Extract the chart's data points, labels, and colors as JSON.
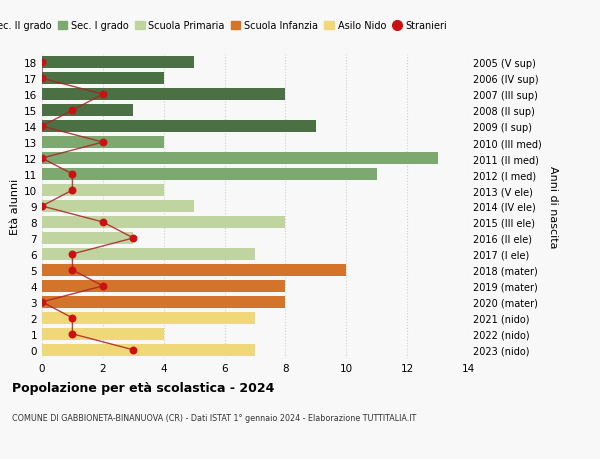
{
  "ages": [
    18,
    17,
    16,
    15,
    14,
    13,
    12,
    11,
    10,
    9,
    8,
    7,
    6,
    5,
    4,
    3,
    2,
    1,
    0
  ],
  "right_labels": [
    "2005 (V sup)",
    "2006 (IV sup)",
    "2007 (III sup)",
    "2008 (II sup)",
    "2009 (I sup)",
    "2010 (III med)",
    "2011 (II med)",
    "2012 (I med)",
    "2013 (V ele)",
    "2014 (IV ele)",
    "2015 (III ele)",
    "2016 (II ele)",
    "2017 (I ele)",
    "2018 (mater)",
    "2019 (mater)",
    "2020 (mater)",
    "2021 (nido)",
    "2022 (nido)",
    "2023 (nido)"
  ],
  "bar_values": [
    5,
    4,
    8,
    3,
    9,
    4,
    13,
    11,
    4,
    5,
    8,
    3,
    7,
    10,
    8,
    8,
    7,
    4,
    7
  ],
  "bar_colors": [
    "#4a7043",
    "#4a7043",
    "#4a7043",
    "#4a7043",
    "#4a7043",
    "#7da870",
    "#7da870",
    "#7da870",
    "#c0d4a0",
    "#c0d4a0",
    "#c0d4a0",
    "#c0d4a0",
    "#c0d4a0",
    "#d4732a",
    "#d4732a",
    "#d4732a",
    "#f0d878",
    "#f0d878",
    "#f0d878"
  ],
  "stranieri_values": [
    0,
    0,
    2,
    1,
    0,
    2,
    0,
    1,
    1,
    0,
    2,
    3,
    1,
    1,
    2,
    0,
    1,
    1,
    3
  ],
  "legend_labels": [
    "Sec. II grado",
    "Sec. I grado",
    "Scuola Primaria",
    "Scuola Infanzia",
    "Asilo Nido",
    "Stranieri"
  ],
  "legend_colors": [
    "#4a7043",
    "#7da870",
    "#c0d4a0",
    "#d4732a",
    "#f0d878",
    "#cc1111"
  ],
  "ylabel_left": "Età alunni",
  "ylabel_right": "Anni di nascita",
  "xlim": [
    0,
    14
  ],
  "title": "Popolazione per età scolastica - 2024",
  "subtitle": "COMUNE DI GABBIONETA-BINANUOVA (CR) - Dati ISTAT 1° gennaio 2024 - Elaborazione TUTTITALIA.IT",
  "bg_color": "#f8f8f8",
  "grid_color": "#d0d0d0"
}
